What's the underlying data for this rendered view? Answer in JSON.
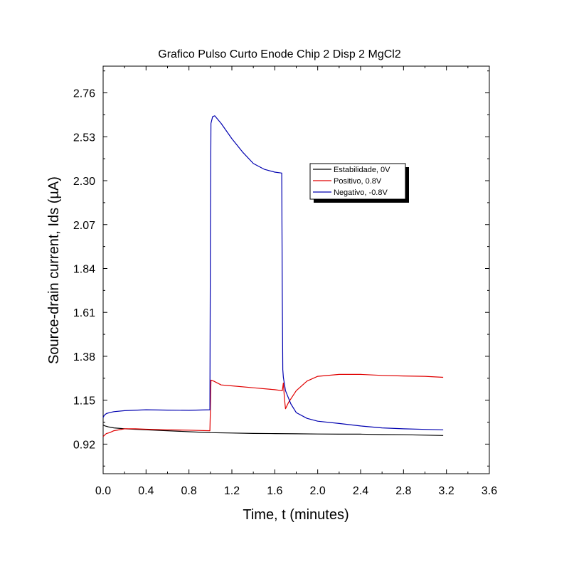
{
  "chart_data": {
    "type": "line",
    "title": "Grafico Pulso Curto Enode Chip 2 Disp 2 MgCl2",
    "xlabel": "Time, t (minutes)",
    "ylabel": "Source-drain current, Ids (µA)",
    "xlim": [
      0.0,
      3.6
    ],
    "ylim": [
      0.765,
      2.9
    ],
    "x_ticks": [
      0.0,
      0.4,
      0.8,
      1.2,
      1.6,
      2.0,
      2.4,
      2.8,
      3.2,
      3.6
    ],
    "x_tick_labels": [
      "0.0",
      "0.4",
      "0.8",
      "1.2",
      "1.6",
      "2.0",
      "2.4",
      "2.8",
      "3.2",
      "3.6"
    ],
    "y_ticks": [
      0.92,
      1.15,
      1.38,
      1.61,
      1.84,
      2.07,
      2.3,
      2.53,
      2.76
    ],
    "y_tick_labels": [
      "0.92",
      "1.15",
      "1.38",
      "1.61",
      "1.84",
      "2.07",
      "2.30",
      "2.53",
      "2.76"
    ],
    "grid": false,
    "legend_position": "top-right",
    "series": [
      {
        "name": "Estabilidade, 0V",
        "color": "#000000",
        "x": [
          0.0,
          0.02,
          0.05,
          0.1,
          0.2,
          0.4,
          0.6,
          0.8,
          1.0,
          1.2,
          1.4,
          1.6,
          1.8,
          2.0,
          2.2,
          2.4,
          2.6,
          2.8,
          3.0,
          3.17
        ],
        "y": [
          1.02,
          1.015,
          1.01,
          1.005,
          1.0,
          0.995,
          0.99,
          0.985,
          0.98,
          0.978,
          0.976,
          0.975,
          0.974,
          0.973,
          0.972,
          0.972,
          0.97,
          0.969,
          0.967,
          0.965
        ]
      },
      {
        "name": "Positivo, 0.8V",
        "color": "#e00000",
        "x": [
          0.0,
          0.03,
          0.06,
          0.1,
          0.2,
          0.3,
          0.4,
          0.6,
          0.8,
          0.995,
          1.0,
          1.005,
          1.03,
          1.1,
          1.2,
          1.4,
          1.6,
          1.67,
          1.68,
          1.69,
          1.7,
          1.73,
          1.8,
          1.9,
          2.0,
          2.2,
          2.4,
          2.6,
          2.8,
          3.0,
          3.17
        ],
        "y": [
          0.96,
          0.975,
          0.98,
          0.99,
          1.0,
          1.0,
          0.998,
          0.995,
          0.993,
          0.99,
          1.1,
          1.255,
          1.25,
          1.23,
          1.225,
          1.215,
          1.205,
          1.2,
          1.24,
          1.16,
          1.105,
          1.14,
          1.2,
          1.25,
          1.275,
          1.285,
          1.285,
          1.28,
          1.277,
          1.275,
          1.27
        ]
      },
      {
        "name": "Negativo, -0.8V",
        "color": "#0000b0",
        "x": [
          0.0,
          0.01,
          0.03,
          0.06,
          0.1,
          0.2,
          0.4,
          0.6,
          0.8,
          0.995,
          1.0,
          1.005,
          1.02,
          1.04,
          1.1,
          1.2,
          1.3,
          1.4,
          1.5,
          1.6,
          1.665,
          1.67,
          1.675,
          1.68,
          1.7,
          1.75,
          1.8,
          1.9,
          2.0,
          2.2,
          2.4,
          2.6,
          2.8,
          3.0,
          3.17
        ],
        "y": [
          1.06,
          1.07,
          1.08,
          1.085,
          1.09,
          1.095,
          1.1,
          1.098,
          1.097,
          1.1,
          2.0,
          2.6,
          2.635,
          2.64,
          2.6,
          2.52,
          2.45,
          2.39,
          2.36,
          2.345,
          2.34,
          1.7,
          1.31,
          1.27,
          1.2,
          1.13,
          1.085,
          1.055,
          1.04,
          1.028,
          1.015,
          1.005,
          1.0,
          0.997,
          0.995
        ]
      }
    ]
  }
}
